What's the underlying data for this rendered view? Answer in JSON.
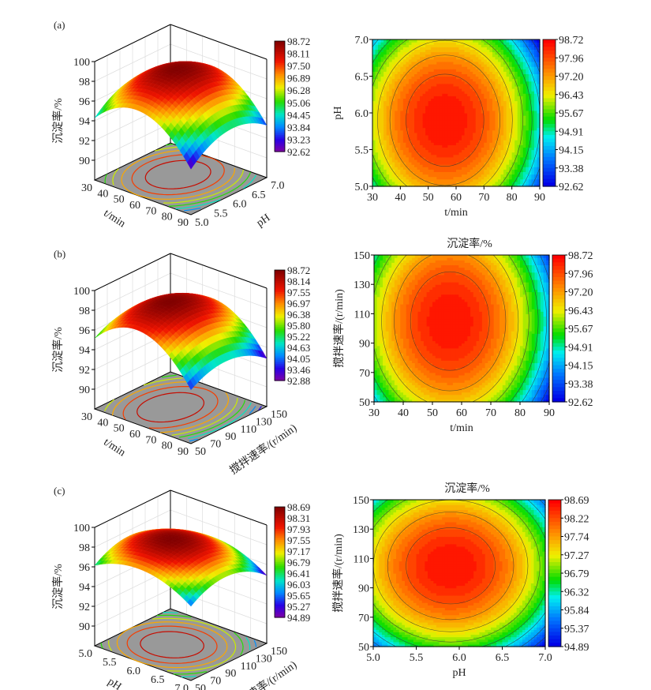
{
  "chart_data": [
    {
      "type": "surface3d",
      "panel_label": "(a)",
      "zlabel": "沉淀率/%",
      "xlabel": "t/min",
      "ylabel": "pH",
      "x_ticks": [
        "30",
        "40",
        "50",
        "60",
        "70",
        "80",
        "90"
      ],
      "y_ticks": [
        "5.0",
        "5.5",
        "6.0",
        "6.5",
        "7.0"
      ],
      "z_ticks": [
        "90",
        "92",
        "94",
        "96",
        "98",
        "100"
      ],
      "xlim": [
        30,
        90
      ],
      "ylim": [
        5.0,
        7.0
      ],
      "zlim": [
        88,
        100
      ],
      "colorbar_ticks": [
        "98.72",
        "98.11",
        "97.50",
        "96.89",
        "96.28",
        "95.06",
        "94.45",
        "93.84",
        "93.23",
        "92.62"
      ],
      "colorbar_range": [
        92.62,
        98.72
      ],
      "optimum": {
        "x": 56,
        "y": 5.9,
        "z": 98.72
      },
      "curvature": {
        "x": 1.0,
        "y": 0.55
      }
    },
    {
      "type": "contour",
      "title": "",
      "xlabel": "t/min",
      "ylabel": "pH",
      "x_ticks": [
        "30",
        "40",
        "50",
        "60",
        "70",
        "80",
        "90"
      ],
      "y_ticks": [
        "5.0",
        "5.5",
        "6.0",
        "6.5",
        "7.0"
      ],
      "xlim": [
        30,
        90
      ],
      "ylim": [
        5.0,
        7.0
      ],
      "colorbar_ticks": [
        "98.72",
        "97.96",
        "97.20",
        "96.43",
        "95.67",
        "94.91",
        "94.15",
        "93.38",
        "92.62"
      ],
      "colorbar_range": [
        92.62,
        98.72
      ],
      "optimum": {
        "x": 56,
        "y": 5.9
      },
      "curvature": {
        "x": 1.0,
        "y": 0.55
      }
    },
    {
      "type": "surface3d",
      "panel_label": "(b)",
      "zlabel": "沉淀率/%",
      "xlabel": "t/min",
      "ylabel": "搅拌速率/(r/min)",
      "x_ticks": [
        "30",
        "40",
        "50",
        "60",
        "70",
        "80",
        "90"
      ],
      "y_ticks": [
        "50",
        "70",
        "90",
        "110",
        "130",
        "150"
      ],
      "z_ticks": [
        "90",
        "92",
        "94",
        "96",
        "98",
        "100"
      ],
      "xlim": [
        30,
        90
      ],
      "ylim": [
        50,
        150
      ],
      "zlim": [
        88,
        100
      ],
      "colorbar_ticks": [
        "98.72",
        "98.14",
        "97.55",
        "96.97",
        "96.38",
        "95.80",
        "95.22",
        "94.63",
        "94.05",
        "93.46",
        "92.88"
      ],
      "colorbar_range": [
        92.88,
        98.72
      ],
      "optimum": {
        "x": 56,
        "y": 105,
        "z": 98.72
      },
      "curvature": {
        "x": 1.0,
        "y": 0.45
      }
    },
    {
      "type": "contour",
      "title": "沉淀率/%",
      "xlabel": "t/min",
      "ylabel": "搅拌速率/(r/min)",
      "x_ticks": [
        "30",
        "40",
        "50",
        "60",
        "70",
        "80",
        "90"
      ],
      "y_ticks": [
        "50",
        "70",
        "90",
        "110",
        "130",
        "150"
      ],
      "xlim": [
        30,
        90
      ],
      "ylim": [
        50,
        150
      ],
      "colorbar_ticks": [
        "98.72",
        "97.96",
        "97.20",
        "96.43",
        "95.67",
        "94.91",
        "94.15",
        "93.38",
        "92.62"
      ],
      "colorbar_range": [
        92.62,
        98.72
      ],
      "optimum": {
        "x": 56,
        "y": 105
      },
      "curvature": {
        "x": 1.0,
        "y": 0.45
      }
    },
    {
      "type": "surface3d",
      "panel_label": "(c)",
      "zlabel": "沉淀率/%",
      "xlabel": "pH",
      "ylabel": "搅拌速率/(r/min)",
      "x_ticks": [
        "5.0",
        "5.5",
        "6.0",
        "6.5",
        "7.0"
      ],
      "y_ticks": [
        "50",
        "70",
        "90",
        "110",
        "130",
        "150"
      ],
      "z_ticks": [
        "90",
        "92",
        "94",
        "96",
        "98",
        "100"
      ],
      "xlim": [
        5.0,
        7.0
      ],
      "ylim": [
        50,
        150
      ],
      "zlim": [
        88,
        100
      ],
      "colorbar_ticks": [
        "98.69",
        "98.31",
        "97.93",
        "97.55",
        "97.17",
        "96.79",
        "96.41",
        "96.03",
        "95.65",
        "95.27",
        "94.89"
      ],
      "colorbar_range": [
        94.89,
        98.69
      ],
      "optimum": {
        "x": 5.9,
        "y": 105,
        "z": 98.69
      },
      "curvature": {
        "x": 1.0,
        "y": 1.0
      }
    },
    {
      "type": "contour",
      "title": "沉淀率/%",
      "xlabel": "pH",
      "ylabel": "搅拌速率/(r/min)",
      "x_ticks": [
        "5.0",
        "5.5",
        "6.0",
        "6.5",
        "7.0"
      ],
      "y_ticks": [
        "50",
        "70",
        "90",
        "110",
        "130",
        "150"
      ],
      "xlim": [
        5.0,
        7.0
      ],
      "ylim": [
        50,
        150
      ],
      "colorbar_ticks": [
        "98.69",
        "98.22",
        "97.74",
        "97.27",
        "96.79",
        "96.32",
        "95.84",
        "95.37",
        "94.89"
      ],
      "colorbar_range": [
        94.89,
        98.69
      ],
      "optimum": {
        "x": 5.9,
        "y": 105
      },
      "curvature": {
        "x": 1.0,
        "y": 1.0
      }
    }
  ]
}
